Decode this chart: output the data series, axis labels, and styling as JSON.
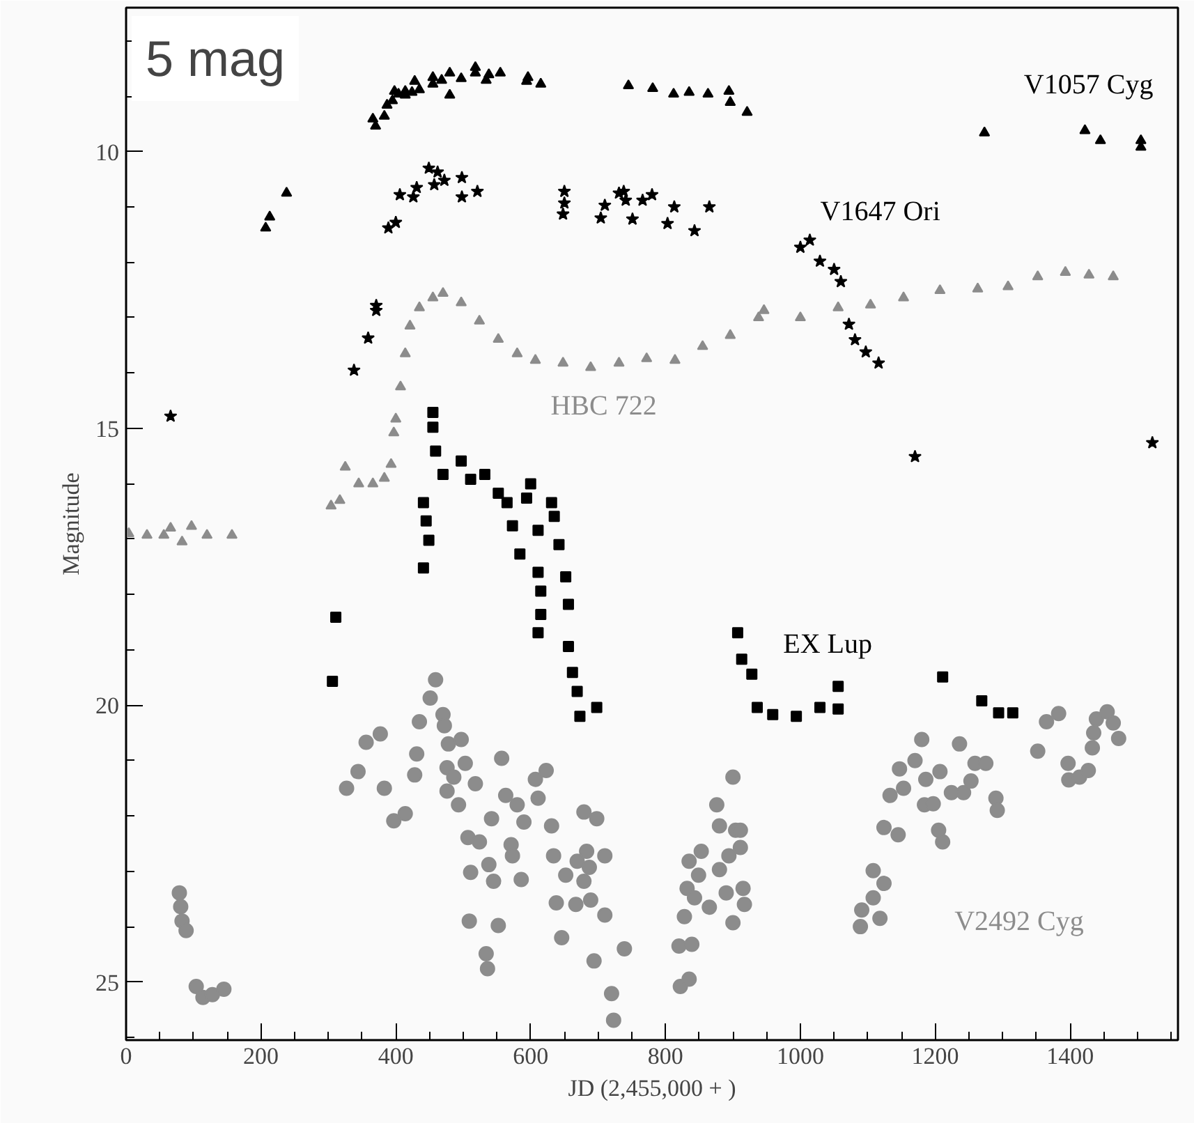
{
  "chart_data": {
    "type": "scatter",
    "xlabel": "JD (2,455,000 + )",
    "ylabel": "Magnitude",
    "xlim": [
      0,
      1560
    ],
    "ylim": [
      26.05,
      7.4
    ],
    "xticks": [
      0,
      200,
      400,
      600,
      800,
      1000,
      1200,
      1400
    ],
    "yticks": [
      10,
      15,
      20,
      25
    ],
    "grid": false,
    "legend": false,
    "annotations": [
      "5 mag"
    ],
    "series": [
      {
        "name": "V1057 Cyg",
        "color": "#000000",
        "marker": "triangle",
        "x": [
          207,
          213,
          238,
          366,
          370,
          383,
          387,
          395,
          398,
          404,
          414,
          414,
          424,
          428,
          435,
          455,
          455,
          468,
          480,
          480,
          497,
          518,
          518,
          534,
          538,
          555,
          594,
          596,
          615,
          745,
          781,
          812,
          835,
          863,
          894,
          896,
          921,
          1273,
          1422,
          1445,
          1505,
          1505
        ],
        "values": [
          11.38,
          11.18,
          10.75,
          9.41,
          9.54,
          9.36,
          9.16,
          9.08,
          8.91,
          8.96,
          8.98,
          8.91,
          8.93,
          8.73,
          8.88,
          8.78,
          8.66,
          8.71,
          8.98,
          8.58,
          8.68,
          8.58,
          8.48,
          8.71,
          8.61,
          8.58,
          8.73,
          8.66,
          8.78,
          8.81,
          8.86,
          8.96,
          8.93,
          8.96,
          8.91,
          9.11,
          9.29,
          9.66,
          9.62,
          9.8,
          9.92,
          9.8
        ]
      },
      {
        "name": "V1647 Ori",
        "color": "#000000",
        "marker": "star",
        "x": [
          66,
          338,
          359,
          371,
          371,
          389,
          400,
          406,
          426,
          431,
          449,
          457,
          462,
          472,
          498,
          498,
          521,
          648,
          650,
          650,
          704,
          710,
          731,
          738,
          741,
          751,
          766,
          780,
          803,
          813,
          843,
          865,
          1000,
          1014,
          1029,
          1050,
          1060,
          1072,
          1081,
          1097,
          1116,
          1170,
          1522
        ],
        "values": [
          14.78,
          13.95,
          13.37,
          12.87,
          12.78,
          11.38,
          11.28,
          10.78,
          10.82,
          10.65,
          10.3,
          10.6,
          10.37,
          10.52,
          10.47,
          10.82,
          10.72,
          11.13,
          10.72,
          10.93,
          11.2,
          10.97,
          10.75,
          10.72,
          10.88,
          11.22,
          10.88,
          10.78,
          11.3,
          11.0,
          11.43,
          11.0,
          11.73,
          11.6,
          11.98,
          12.13,
          12.35,
          13.12,
          13.4,
          13.62,
          13.82,
          15.51,
          15.26
        ]
      },
      {
        "name": "HBC 722",
        "color": "#8c8c8c",
        "marker": "triangle",
        "x": [
          4,
          31,
          56,
          66,
          83,
          97,
          120,
          157,
          304,
          317,
          325,
          345,
          366,
          383,
          393,
          397,
          400,
          407,
          414,
          421,
          435,
          455,
          470,
          497,
          524,
          552,
          580,
          607,
          648,
          689,
          731,
          772,
          814,
          855,
          896,
          938,
          946,
          1000,
          1056,
          1104,
          1153,
          1207,
          1263,
          1308,
          1352,
          1393,
          1428,
          1464
        ],
        "values": [
          16.9,
          16.93,
          16.93,
          16.8,
          17.05,
          16.77,
          16.93,
          16.93,
          16.4,
          16.3,
          15.7,
          16.0,
          16.0,
          15.9,
          15.65,
          15.08,
          14.83,
          14.25,
          13.65,
          13.15,
          12.82,
          12.64,
          12.56,
          12.73,
          13.06,
          13.39,
          13.65,
          13.77,
          13.82,
          13.9,
          13.82,
          13.74,
          13.77,
          13.52,
          13.32,
          13.0,
          12.87,
          13.0,
          12.82,
          12.77,
          12.64,
          12.51,
          12.48,
          12.44,
          12.26,
          12.18,
          12.23,
          12.26
        ]
      },
      {
        "name": "EX Lup",
        "color": "#000000",
        "marker": "square",
        "x": [
          306,
          311,
          441,
          441,
          445,
          449,
          455,
          455,
          459,
          470,
          497,
          511,
          532,
          552,
          565,
          573,
          584,
          594,
          600,
          611,
          611,
          611,
          615,
          615,
          631,
          635,
          642,
          652,
          656,
          656,
          662,
          669,
          673,
          698,
          907,
          913,
          928,
          936,
          959,
          994,
          1029,
          1056,
          1056,
          1211,
          1269,
          1294,
          1315
        ],
        "values": [
          19.57,
          18.41,
          17.52,
          16.34,
          16.67,
          17.02,
          14.71,
          14.98,
          15.41,
          15.83,
          15.59,
          15.92,
          15.83,
          16.17,
          16.34,
          16.76,
          17.27,
          16.26,
          16.0,
          16.84,
          17.6,
          18.69,
          17.94,
          18.36,
          16.34,
          16.59,
          17.1,
          17.68,
          18.18,
          18.94,
          19.41,
          19.75,
          20.2,
          20.04,
          18.69,
          19.17,
          19.44,
          20.04,
          20.17,
          20.2,
          20.04,
          20.07,
          19.66,
          19.49,
          19.92,
          20.14,
          20.14
        ]
      },
      {
        "name": "V2492 Cyg",
        "color": "#8c8c8c",
        "marker": "circle",
        "x": [
          79,
          81,
          83,
          89,
          104,
          114,
          128,
          145,
          327,
          344,
          356,
          377,
          383,
          397,
          414,
          428,
          431,
          435,
          451,
          459,
          470,
          472,
          476,
          476,
          478,
          486,
          493,
          497,
          503,
          507,
          509,
          511,
          518,
          524,
          534,
          536,
          538,
          542,
          545,
          552,
          557,
          563,
          571,
          573,
          580,
          586,
          590,
          607,
          611,
          623,
          631,
          634,
          638,
          646,
          652,
          667,
          669,
          679,
          679,
          683,
          687,
          689,
          694,
          698,
          710,
          710,
          720,
          723,
          739,
          820,
          822,
          828,
          832,
          835,
          835,
          839,
          843,
          849,
          853,
          865,
          876,
          880,
          880,
          890,
          894,
          900,
          900,
          904,
          911,
          911,
          915,
          917,
          1089,
          1091,
          1108,
          1108,
          1118,
          1124,
          1124,
          1133,
          1145,
          1147,
          1153,
          1170,
          1180,
          1184,
          1186,
          1197,
          1205,
          1207,
          1211,
          1224,
          1236,
          1242,
          1253,
          1259,
          1275,
          1290,
          1292,
          1352,
          1365,
          1383,
          1397,
          1398,
          1414,
          1427,
          1433,
          1435,
          1439,
          1455,
          1464,
          1472
        ],
        "values": [
          23.39,
          23.64,
          23.9,
          24.07,
          25.08,
          25.28,
          25.23,
          25.13,
          21.5,
          21.2,
          20.67,
          20.52,
          21.5,
          22.09,
          21.96,
          21.26,
          20.88,
          20.3,
          19.87,
          19.54,
          20.17,
          20.37,
          21.13,
          21.55,
          20.7,
          21.3,
          21.8,
          20.62,
          21.05,
          22.39,
          23.9,
          23.02,
          21.42,
          22.47,
          24.49,
          24.76,
          22.88,
          22.05,
          23.18,
          23.98,
          20.96,
          21.63,
          22.52,
          22.72,
          21.8,
          23.15,
          22.11,
          21.34,
          21.68,
          21.18,
          22.18,
          22.72,
          23.57,
          24.2,
          23.07,
          23.6,
          22.82,
          21.93,
          23.18,
          22.64,
          22.93,
          23.52,
          24.62,
          22.05,
          22.72,
          23.79,
          25.21,
          25.69,
          24.4,
          24.35,
          25.08,
          23.82,
          23.31,
          24.95,
          22.82,
          24.32,
          23.48,
          23.07,
          22.64,
          23.65,
          21.8,
          22.18,
          22.97,
          23.39,
          22.72,
          21.3,
          23.93,
          22.26,
          22.26,
          22.57,
          23.31,
          23.6,
          24.0,
          23.7,
          22.99,
          23.48,
          23.85,
          23.22,
          22.21,
          21.63,
          22.34,
          21.15,
          21.5,
          21.0,
          20.62,
          21.8,
          21.34,
          21.78,
          22.26,
          21.2,
          22.47,
          21.58,
          20.7,
          21.58,
          21.37,
          21.05,
          21.05,
          21.68,
          21.9,
          20.83,
          20.3,
          20.15,
          21.05,
          21.35,
          21.3,
          21.18,
          20.77,
          20.5,
          20.25,
          20.12,
          20.32,
          20.6
        ]
      }
    ]
  }
}
